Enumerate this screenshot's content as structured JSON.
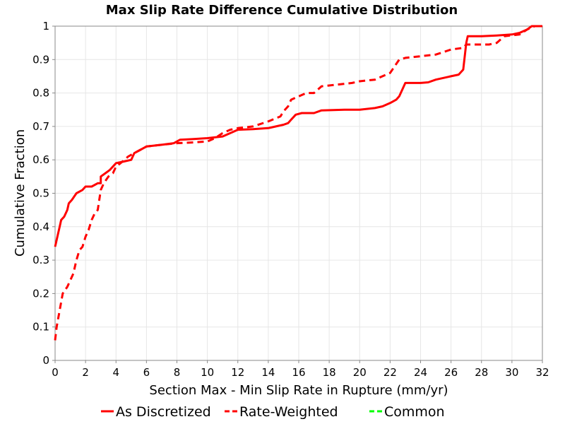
{
  "chart_data": {
    "type": "line",
    "title": "Max Slip Rate Difference Cumulative Distribution",
    "xlabel": "Section Max - Min Slip Rate in Rupture (mm/yr)",
    "ylabel": "Cumulative Fraction",
    "xlim": [
      0,
      32
    ],
    "ylim": [
      0,
      1
    ],
    "x_ticks": [
      "0",
      "2",
      "4",
      "6",
      "8",
      "10",
      "12",
      "14",
      "16",
      "18",
      "20",
      "22",
      "24",
      "26",
      "28",
      "30",
      "32"
    ],
    "y_ticks": [
      "0",
      "0.1",
      "0.2",
      "0.3",
      "0.4",
      "0.5",
      "0.6",
      "0.7",
      "0.8",
      "0.9",
      "1"
    ],
    "grid": true,
    "legend_position": "bottom",
    "series": [
      {
        "name": "As Discretized",
        "color": "#ff0000",
        "style": "solid",
        "points": [
          [
            0.0,
            0.34
          ],
          [
            0.05,
            0.35
          ],
          [
            0.1,
            0.36
          ],
          [
            0.2,
            0.38
          ],
          [
            0.3,
            0.4
          ],
          [
            0.4,
            0.42
          ],
          [
            0.6,
            0.43
          ],
          [
            0.8,
            0.45
          ],
          [
            0.9,
            0.47
          ],
          [
            1.1,
            0.48
          ],
          [
            1.4,
            0.5
          ],
          [
            1.8,
            0.51
          ],
          [
            2.0,
            0.52
          ],
          [
            2.4,
            0.52
          ],
          [
            2.8,
            0.53
          ],
          [
            3.0,
            0.53
          ],
          [
            3.0,
            0.55
          ],
          [
            3.3,
            0.56
          ],
          [
            3.6,
            0.57
          ],
          [
            3.8,
            0.58
          ],
          [
            4.0,
            0.59
          ],
          [
            4.5,
            0.595
          ],
          [
            5.0,
            0.6
          ],
          [
            5.2,
            0.62
          ],
          [
            5.6,
            0.63
          ],
          [
            6.0,
            0.64
          ],
          [
            7.0,
            0.645
          ],
          [
            7.8,
            0.65
          ],
          [
            8.2,
            0.66
          ],
          [
            9.0,
            0.662
          ],
          [
            10.0,
            0.665
          ],
          [
            11.0,
            0.67
          ],
          [
            11.5,
            0.68
          ],
          [
            12.0,
            0.69
          ],
          [
            13.0,
            0.692
          ],
          [
            14.0,
            0.695
          ],
          [
            14.5,
            0.7
          ],
          [
            15.0,
            0.705
          ],
          [
            15.3,
            0.71
          ],
          [
            15.5,
            0.72
          ],
          [
            15.8,
            0.735
          ],
          [
            16.2,
            0.74
          ],
          [
            17.0,
            0.74
          ],
          [
            17.5,
            0.748
          ],
          [
            19.0,
            0.75
          ],
          [
            20.0,
            0.75
          ],
          [
            21.0,
            0.755
          ],
          [
            21.5,
            0.76
          ],
          [
            22.0,
            0.77
          ],
          [
            22.4,
            0.78
          ],
          [
            22.6,
            0.79
          ],
          [
            22.8,
            0.81
          ],
          [
            23.0,
            0.83
          ],
          [
            24.0,
            0.83
          ],
          [
            24.5,
            0.832
          ],
          [
            25.0,
            0.84
          ],
          [
            26.0,
            0.85
          ],
          [
            26.5,
            0.855
          ],
          [
            26.8,
            0.87
          ],
          [
            27.0,
            0.95
          ],
          [
            27.1,
            0.97
          ],
          [
            28.0,
            0.97
          ],
          [
            29.0,
            0.972
          ],
          [
            30.0,
            0.975
          ],
          [
            30.5,
            0.98
          ],
          [
            31.0,
            0.99
          ],
          [
            31.3,
            1.0
          ],
          [
            32.0,
            1.0
          ]
        ]
      },
      {
        "name": "Rate-Weighted",
        "color": "#ff0000",
        "style": "dashed",
        "points": [
          [
            0.0,
            0.06
          ],
          [
            0.1,
            0.1
          ],
          [
            0.3,
            0.15
          ],
          [
            0.5,
            0.2
          ],
          [
            0.8,
            0.22
          ],
          [
            1.0,
            0.24
          ],
          [
            1.2,
            0.26
          ],
          [
            1.4,
            0.3
          ],
          [
            1.6,
            0.33
          ],
          [
            1.8,
            0.34
          ],
          [
            2.0,
            0.37
          ],
          [
            2.2,
            0.39
          ],
          [
            2.4,
            0.42
          ],
          [
            2.6,
            0.44
          ],
          [
            2.8,
            0.45
          ],
          [
            3.0,
            0.51
          ],
          [
            3.2,
            0.53
          ],
          [
            3.5,
            0.55
          ],
          [
            3.8,
            0.56
          ],
          [
            4.0,
            0.58
          ],
          [
            4.3,
            0.59
          ],
          [
            4.8,
            0.61
          ],
          [
            5.2,
            0.62
          ],
          [
            5.6,
            0.63
          ],
          [
            6.0,
            0.64
          ],
          [
            7.0,
            0.645
          ],
          [
            8.0,
            0.65
          ],
          [
            9.0,
            0.652
          ],
          [
            10.0,
            0.655
          ],
          [
            10.5,
            0.665
          ],
          [
            11.0,
            0.68
          ],
          [
            11.5,
            0.69
          ],
          [
            12.0,
            0.695
          ],
          [
            13.0,
            0.7
          ],
          [
            14.0,
            0.715
          ],
          [
            14.8,
            0.73
          ],
          [
            15.0,
            0.745
          ],
          [
            15.3,
            0.76
          ],
          [
            15.5,
            0.78
          ],
          [
            16.0,
            0.79
          ],
          [
            16.5,
            0.8
          ],
          [
            17.0,
            0.8
          ],
          [
            17.5,
            0.82
          ],
          [
            18.5,
            0.825
          ],
          [
            19.5,
            0.83
          ],
          [
            20.0,
            0.835
          ],
          [
            21.0,
            0.84
          ],
          [
            21.5,
            0.85
          ],
          [
            22.0,
            0.86
          ],
          [
            22.3,
            0.88
          ],
          [
            22.6,
            0.9
          ],
          [
            23.0,
            0.905
          ],
          [
            24.0,
            0.91
          ],
          [
            25.0,
            0.915
          ],
          [
            26.0,
            0.93
          ],
          [
            26.8,
            0.935
          ],
          [
            27.0,
            0.945
          ],
          [
            28.5,
            0.945
          ],
          [
            29.0,
            0.95
          ],
          [
            29.5,
            0.97
          ],
          [
            30.5,
            0.975
          ],
          [
            31.0,
            0.99
          ],
          [
            31.5,
            1.0
          ],
          [
            32.0,
            1.0
          ]
        ]
      },
      {
        "name": "Common",
        "color": "#00ff00",
        "style": "dashed",
        "points": []
      }
    ]
  }
}
